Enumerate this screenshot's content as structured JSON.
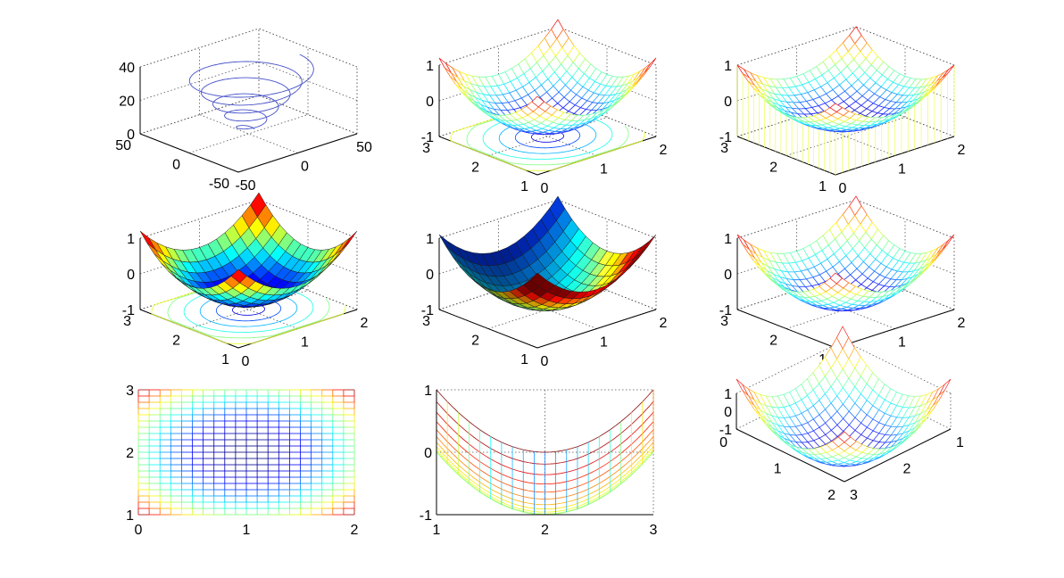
{
  "chart_data": [
    {
      "id": "p1",
      "type": "3d-line",
      "function": "helix",
      "ticks": {
        "x": [
          "-50",
          "0",
          "50"
        ],
        "y": [
          "-50",
          "0",
          "50"
        ],
        "z": [
          "0",
          "20",
          "40"
        ]
      },
      "zlim": [
        0,
        40
      ],
      "xlim": [
        -50,
        50
      ],
      "ylim": [
        -50,
        50
      ],
      "line_color": "#4450c8",
      "grid": true
    },
    {
      "id": "p2",
      "type": "meshc",
      "function": "z = (x-1)^2 + (y-2)^2 - 1",
      "ticks": {
        "x": [
          "0",
          "1",
          "2"
        ],
        "y": [
          "1",
          "2",
          "3"
        ],
        "z": [
          "-1",
          "0",
          "1"
        ]
      },
      "xlim": [
        0,
        2
      ],
      "ylim": [
        1,
        3
      ],
      "zlim": [
        -1,
        1
      ],
      "grid": true,
      "colormap": "jet"
    },
    {
      "id": "p3",
      "type": "meshz",
      "function": "z = (x-1)^2 + (y-2)^2 - 1",
      "ticks": {
        "x": [
          "0",
          "1",
          "2"
        ],
        "y": [
          "1",
          "2",
          "3"
        ],
        "z": [
          "-1",
          "0",
          "1"
        ]
      },
      "xlim": [
        0,
        2
      ],
      "ylim": [
        1,
        3
      ],
      "zlim": [
        -1,
        1
      ],
      "grid": true,
      "colormap": "jet"
    },
    {
      "id": "p4",
      "type": "surfc",
      "function": "z = (x-1)^2 + (y-2)^2 - 1",
      "ticks": {
        "x": [
          "0",
          "1",
          "2"
        ],
        "y": [
          "1",
          "2",
          "3"
        ],
        "z": [
          "-1",
          "0",
          "1"
        ]
      },
      "xlim": [
        0,
        2
      ],
      "ylim": [
        1,
        3
      ],
      "zlim": [
        -1,
        1
      ],
      "grid": true,
      "colormap": "jet"
    },
    {
      "id": "p5",
      "type": "surfl",
      "function": "z = (x-1)^2 + (y-2)^2 - 1",
      "ticks": {
        "x": [
          "0",
          "1",
          "2"
        ],
        "y": [
          "1",
          "2",
          "3"
        ],
        "z": [
          "-1",
          "0",
          "1"
        ]
      },
      "xlim": [
        0,
        2
      ],
      "ylim": [
        1,
        3
      ],
      "zlim": [
        -1,
        1
      ],
      "grid": true,
      "colormap": "jet"
    },
    {
      "id": "p6",
      "type": "mesh",
      "function": "z = (x-1)^2 + (y-2)^2 - 1",
      "ticks": {
        "x": [
          "0",
          "1",
          "2"
        ],
        "y": [
          "1",
          "2",
          "3"
        ],
        "z": [
          "-1",
          "0",
          "1"
        ]
      },
      "xlim": [
        0,
        2
      ],
      "ylim": [
        1,
        3
      ],
      "zlim": [
        -1,
        1
      ],
      "grid": true,
      "colormap": "jet"
    },
    {
      "id": "p7",
      "type": "mesh-top-view",
      "function": "z = (x-1)^2 + (y-2)^2 - 1",
      "ticks": {
        "x": [
          "0",
          "1",
          "2"
        ],
        "y": [
          "1",
          "2",
          "3"
        ]
      },
      "xlim": [
        0,
        2
      ],
      "ylim": [
        1,
        3
      ],
      "colormap": "jet"
    },
    {
      "id": "p8",
      "type": "mesh-side-view",
      "function": "z = (x-1)^2 + (y-2)^2 - 1",
      "ticks": {
        "x": [
          "1",
          "2",
          "3"
        ],
        "z": [
          "-1",
          "0",
          "1"
        ]
      },
      "xlim": [
        1,
        3
      ],
      "zlim": [
        -1,
        1
      ],
      "grid": true,
      "colormap": "jet"
    },
    {
      "id": "p9",
      "type": "mesh",
      "function": "z = (x-1)^2 + (y-2)^2 - 1",
      "ticks": {
        "x": [
          "0",
          "1",
          "2"
        ],
        "y": [
          "1",
          "2",
          "3"
        ],
        "z": [
          "-1",
          "0",
          "1"
        ]
      },
      "xlim": [
        0,
        2
      ],
      "ylim": [
        1,
        3
      ],
      "zlim": [
        -1,
        1
      ],
      "grid": true,
      "colormap": "jet"
    }
  ]
}
